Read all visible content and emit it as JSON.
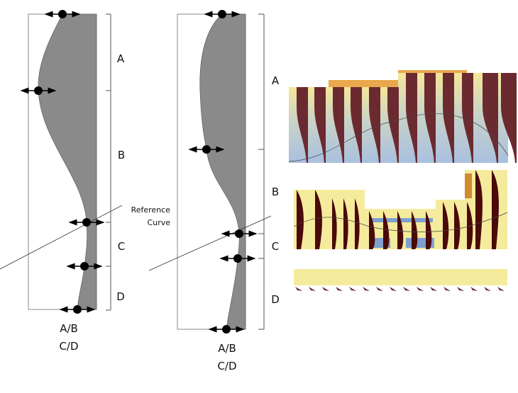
{
  "left_profile": {
    "zones": [
      "A",
      "B",
      "C",
      "D"
    ],
    "caption_line1": "A/B",
    "caption_line2": "C/D",
    "reference_label_line1": "Reference",
    "reference_label_line2": "Curve"
  },
  "middle_profile": {
    "zones": [
      "A",
      "B",
      "C",
      "D"
    ],
    "caption_line1": "A/B",
    "caption_line2": "C/D"
  },
  "colors": {
    "profile_fill": "#8a8a8a",
    "fin": "#6b2a30",
    "fin_dark": "#4a0a0a",
    "panel_yellow": "#f5eb9c",
    "panel_blue": "#a9c0df",
    "roof_orange": "#e9a84c"
  }
}
